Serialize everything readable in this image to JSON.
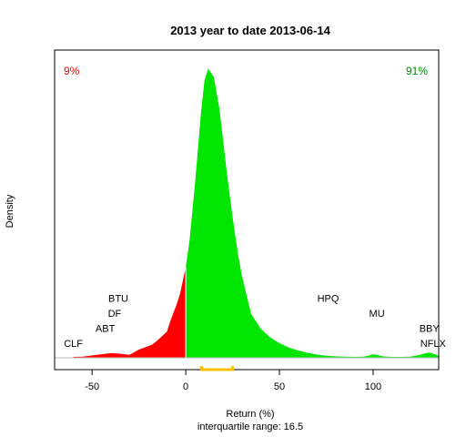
{
  "chart_data": {
    "type": "area",
    "title": "2013  year to date 2013-06-14",
    "xlabel": "Return (%)",
    "ylabel": "Density",
    "subtitle": "interquartile range: 16.5",
    "xlim": [
      -70,
      135
    ],
    "ylim": [
      0,
      1
    ],
    "x_ticks": [
      -50,
      0,
      50,
      100
    ],
    "pct_negative_label": "9%",
    "pct_positive_label": "91%",
    "colors": {
      "negative": "#ff0000",
      "positive": "#00e600",
      "iqr_bracket": "#ffc000",
      "zero_line": "#ffffff"
    },
    "iqr": [
      8.5,
      25
    ],
    "density": {
      "x": [
        -60,
        -55,
        -50,
        -45,
        -40,
        -35,
        -30,
        -25,
        -22,
        -18,
        -15,
        -10,
        -8,
        -5,
        -3,
        -1,
        0,
        2,
        5,
        8,
        10,
        12,
        15,
        18,
        20,
        22,
        25,
        28,
        30,
        33,
        35,
        40,
        45,
        50,
        55,
        60,
        65,
        70,
        75,
        80,
        85,
        90,
        95,
        98,
        100,
        102,
        105,
        110,
        115,
        120,
        125,
        128,
        130,
        133,
        135
      ],
      "y": [
        0.003,
        0.004,
        0.008,
        0.012,
        0.016,
        0.014,
        0.01,
        0.028,
        0.035,
        0.045,
        0.06,
        0.09,
        0.13,
        0.18,
        0.22,
        0.28,
        0.31,
        0.4,
        0.6,
        0.83,
        0.95,
        0.99,
        0.96,
        0.85,
        0.74,
        0.63,
        0.48,
        0.35,
        0.28,
        0.2,
        0.15,
        0.1,
        0.07,
        0.05,
        0.035,
        0.025,
        0.017,
        0.011,
        0.007,
        0.005,
        0.004,
        0.003,
        0.004,
        0.008,
        0.012,
        0.01,
        0.005,
        0.003,
        0.003,
        0.004,
        0.01,
        0.016,
        0.018,
        0.012,
        0.006
      ]
    },
    "annotations": [
      {
        "label": "CLF",
        "x": -60,
        "row": 0
      },
      {
        "label": "ABT",
        "x": -43,
        "row": 1
      },
      {
        "label": "DF",
        "x": -38,
        "row": 2
      },
      {
        "label": "BTU",
        "x": -36,
        "row": 3
      },
      {
        "label": "HPQ",
        "x": 76,
        "row": 3
      },
      {
        "label": "MU",
        "x": 102,
        "row": 2
      },
      {
        "label": "BBY",
        "x": 130,
        "row": 1
      },
      {
        "label": "NFLX",
        "x": 132,
        "row": 0
      }
    ]
  }
}
